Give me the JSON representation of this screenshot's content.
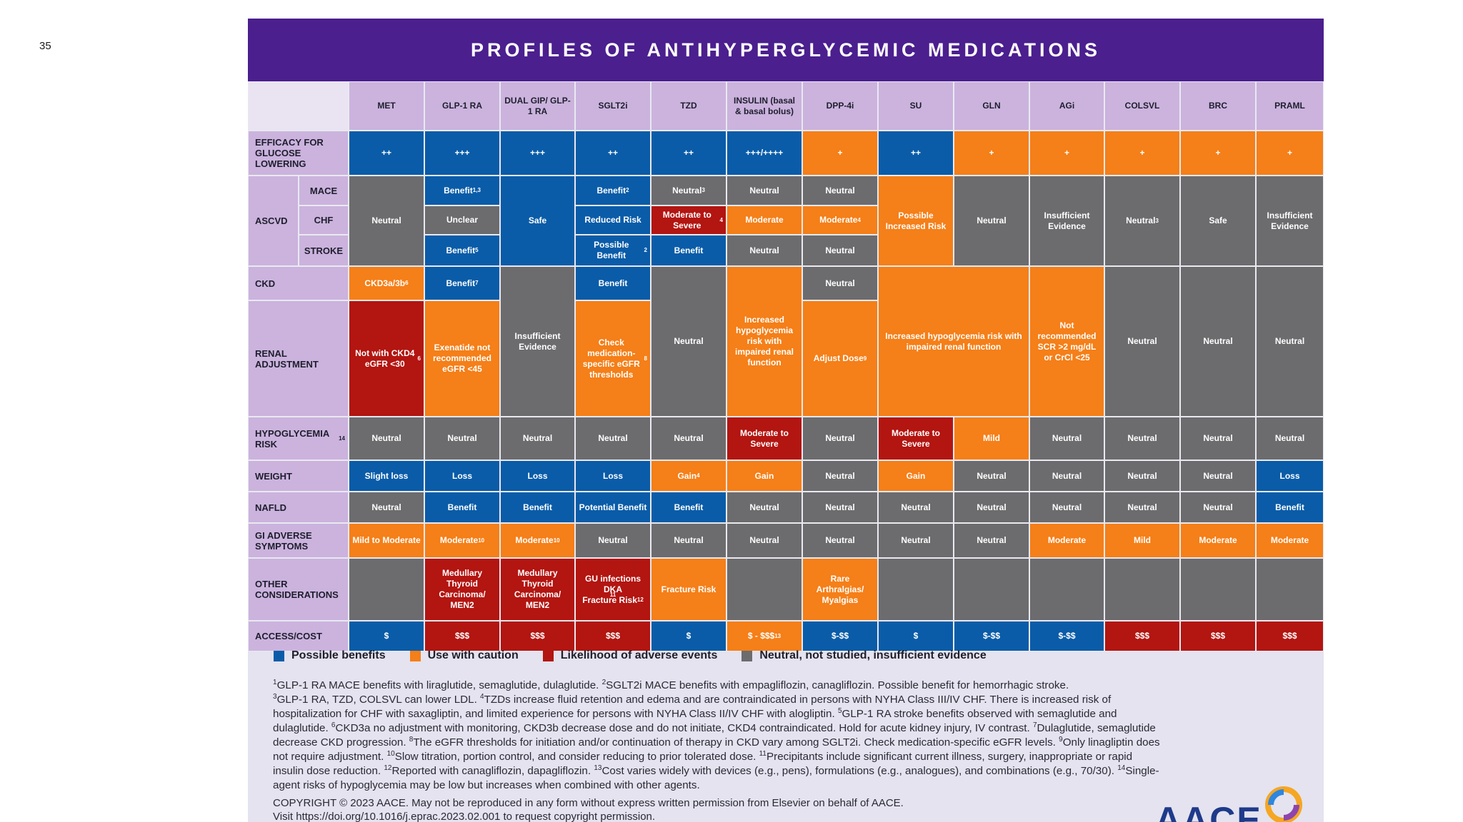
{
  "slide_number": "35",
  "title": "PROFILES OF ANTIHYPERGLYCEMIC MEDICATIONS",
  "colors": {
    "blue": "#0a5ca8",
    "orange": "#f57f18",
    "red": "#b31511",
    "gray": "#6c6c6f",
    "purple": "#4b1f8e",
    "header": "#cbb3de"
  },
  "columns": [
    "MET",
    "GLP-1 RA",
    "DUAL GIP/ GLP-1 RA",
    "SGLT2i",
    "TZD",
    "INSULIN (basal & basal bolus)",
    "DPP-4i",
    "SU",
    "GLN",
    "AGi",
    "COLSVL",
    "BRC",
    "PRAML"
  ],
  "row_labels": {
    "efficacy": "EFFICACY FOR GLUCOSE LOWERING",
    "ascvd": "ASCVD",
    "mace": "MACE",
    "chf": "CHF",
    "stroke": "STROKE",
    "ckd": "CKD",
    "renal": "RENAL ADJUSTMENT",
    "hypo": "HYPOGLYCEMIA RISK",
    "hypo_sup": "14",
    "weight": "WEIGHT",
    "nafld": "NAFLD",
    "gi": "GI ADVERSE SYMPTOMS",
    "other": "OTHER CONSIDERATIONS",
    "access": "ACCESS/COST"
  },
  "cells": {
    "eff": [
      "++",
      "+++",
      "+++",
      "++",
      "++",
      "+++/++++",
      "+",
      "++",
      "+",
      "+",
      "+",
      "+",
      "+"
    ],
    "met_ascvd": "Neutral",
    "glp_mace": "Benefit",
    "glp_mace_sup": "1,3",
    "glp_chf": "Unclear",
    "glp_stroke": "Benefit",
    "glp_stroke_sup": "5",
    "dual_ascvd": "Safe",
    "sglt_mace": "Benefit",
    "sglt_mace_sup": "2",
    "sglt_chf": "Reduced Risk",
    "sglt_stroke": "Possible Benefit",
    "sglt_stroke_sup": "2",
    "tzd_mace": "Neutral",
    "tzd_mace_sup": "3",
    "tzd_chf": "Moderate to Severe",
    "tzd_chf_sup": "4",
    "tzd_stroke": "Benefit",
    "ins_mace": "Neutral",
    "ins_chf": "Moderate",
    "ins_stroke": "Neutral",
    "dpp_mace": "Neutral",
    "dpp_chf": "Moderate",
    "dpp_chf_sup": "4",
    "dpp_stroke": "Neutral",
    "su_ascvd": "Possible Increased Risk",
    "gln_ascvd": "Neutral",
    "agi_ascvd": "Insufficient Evidence",
    "col_ascvd": "Neutral",
    "col_ascvd_sup": "3",
    "brc_ascvd": "Safe",
    "pra_ascvd": "Insufficient Evidence",
    "met_ckd": "CKD3a/3b",
    "met_ckd_sup": "6",
    "met_renal": "Not with CKD4 eGFR <30",
    "met_renal_sup": "6",
    "glp_ckd": "Benefit",
    "glp_ckd_sup": "7",
    "glp_renal": "Exenatide not recommended eGFR <45",
    "dual_ckd": "Insufficient Evidence",
    "sglt_ckd": "Benefit",
    "sglt_renal": "Check medication-specific eGFR thresholds",
    "sglt_renal_sup": "8",
    "tzd_ckd": "Neutral",
    "ins_ckd": "Increased hypoglycemia risk with impaired renal function",
    "dpp_ckd": "Neutral",
    "dpp_renal": "Adjust Dose",
    "dpp_renal_sup": "9",
    "sugln_ckd": "Increased hypoglycemia risk with impaired renal function",
    "agi_ckd": "Not recommended SCR >2 mg/dL or CrCl <25",
    "col_ckd": "Neutral",
    "brc_ckd": "Neutral",
    "pra_ckd": "Neutral",
    "hypo": [
      "Neutral",
      "Neutral",
      "Neutral",
      "Neutral",
      "Neutral",
      "Moderate to Severe",
      "Neutral",
      "Moderate to Severe",
      "Mild",
      "Neutral",
      "Neutral",
      "Neutral",
      "Neutral"
    ],
    "weight": [
      "Slight loss",
      "Loss",
      "Loss",
      "Loss",
      "Gain",
      "Gain",
      "Neutral",
      "Gain",
      "Neutral",
      "Neutral",
      "Neutral",
      "Neutral",
      "Loss"
    ],
    "weight_tzd_sup": "4",
    "nafld": [
      "Neutral",
      "Benefit",
      "Benefit",
      "Potential Benefit",
      "Benefit",
      "Neutral",
      "Neutral",
      "Neutral",
      "Neutral",
      "Neutral",
      "Neutral",
      "Neutral",
      "Benefit"
    ],
    "gi": [
      "Mild to Moderate",
      "Moderate",
      "Moderate",
      "Neutral",
      "Neutral",
      "Neutral",
      "Neutral",
      "Neutral",
      "Neutral",
      "Moderate",
      "Mild",
      "Moderate",
      "Moderate"
    ],
    "gi_sup": "10",
    "other_glp": "Medullary Thyroid Carcinoma/ MEN2",
    "other_dual": "Medullary Thyroid Carcinoma/ MEN2",
    "other_sglt_a": "GU infections DKA",
    "other_sglt_a_sup": "11",
    "other_sglt_b": "Fracture Risk",
    "other_sglt_b_sup": "12",
    "other_tzd": "Fracture Risk",
    "other_dpp": "Rare Arthralgias/ Myalgias",
    "cost": [
      "$",
      "$$$",
      "$$$",
      "$$$",
      "$",
      "$ - $$$",
      "$-$$",
      "$",
      "$-$$",
      "$-$$",
      "$$$",
      "$$$",
      "$$$"
    ],
    "cost_ins_sup": "13"
  },
  "legend": [
    {
      "label": "Possible benefits",
      "color": "#0a5ca8"
    },
    {
      "label": "Use with caution",
      "color": "#f57f18"
    },
    {
      "label": "Likelihood of adverse events",
      "color": "#b31511"
    },
    {
      "label": "Neutral, not studied, insufficient evidence",
      "color": "#6c6c6f"
    }
  ],
  "footnotes": {
    "n1": "GLP-1 RA MACE benefits with liraglutide, semaglutide, dulaglutide. ",
    "n2": "SGLT2i MACE benefits with empagliflozin, canagliflozin. Possible benefit for hemorrhagic stroke. ",
    "n3": "GLP-1 RA, TZD, COLSVL can lower LDL. ",
    "n4": "TZDs increase fluid retention and edema and are contraindicated in persons with NYHA Class III/IV CHF. There is increased risk of hospitalization for CHF with saxagliptin, and limited experience for persons with NYHA Class II/IV CHF with alogliptin. ",
    "n5": "GLP-1 RA stroke benefits observed with semaglutide and dulaglutide. ",
    "n6": "CKD3a no adjustment with monitoring, CKD3b decrease dose and do not initiate, CKD4 contraindicated. Hold for acute kidney injury, IV contrast. ",
    "n7": "Dulaglutide, semaglutide decrease CKD progression. ",
    "n8": "The eGFR thresholds for initiation and/or continuation of therapy in CKD vary among SGLT2i. Check medication-specific eGFR levels. ",
    "n9": "Only linagliptin does not require adjustment. ",
    "n10": "Slow titration, portion control, and consider reducing to prior tolerated dose. ",
    "n11": "Precipitants include significant current illness, surgery, inappropriate or rapid insulin dose reduction. ",
    "n12": "Reported with canagliflozin, dapagliflozin. ",
    "n13": "Cost varies widely with devices (e.g., pens), formulations (e.g., analogues), and combinations (e.g., 70/30). ",
    "n14": "Single-agent risks of hypoglycemia may be low but increases when combined with other agents."
  },
  "copyright": {
    "line1": "COPYRIGHT © 2023 AACE. May not be reproduced in any form without express written permission from Elsevier on behalf of AACE.",
    "line2": "Visit https://doi.org/10.1016/j.eprac.2023.02.001 to request copyright permission."
  },
  "logo_text": "AACE"
}
